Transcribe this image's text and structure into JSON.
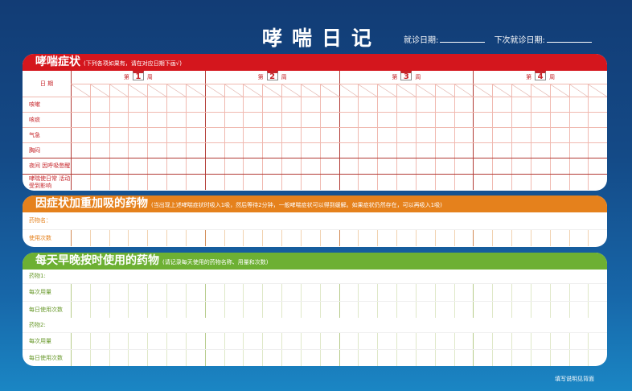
{
  "header": {
    "title": "哮喘日记",
    "visit_date_label": "就诊日期:",
    "next_visit_label": "下次就诊日期:"
  },
  "symptoms": {
    "title": "哮喘症状",
    "note": "(下列各项如果有，请在对应日期下画√)",
    "date_label": "日 期",
    "week_prefix": "第",
    "week_suffix": "周",
    "weeks": [
      "1",
      "2",
      "3",
      "4"
    ],
    "rows": [
      "咳嗽",
      "咳痰",
      "气急",
      "胸闷",
      "夜间 因呼吸憋醒",
      "哮喘使日常 活动受到影响"
    ]
  },
  "reliever": {
    "title": "因症状加重加吸的药物",
    "note": "(当出现上述哮喘症状时吸入1吸，然后等待2分钟，一般哮喘症状可以得到缓解。如果症状仍然存在，可以再吸入1吸)",
    "rows": [
      "药物名：",
      "使用次数"
    ]
  },
  "controller": {
    "title": "每天早晚按时使用的药物",
    "note": "(请记录每天使用的药物名称、用量和次数)",
    "rows": [
      "药物1:",
      "每次用量",
      "每日使用次数",
      "药物2:",
      "每次用量",
      "每日使用次数"
    ]
  },
  "footer": "填写说明见背面",
  "colors": {
    "symptoms": "#d4161d",
    "reliever": "#e5811c",
    "controller": "#6db033"
  }
}
